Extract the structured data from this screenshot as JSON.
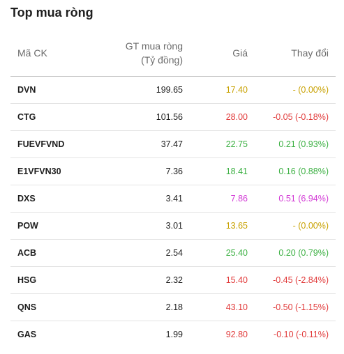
{
  "title": "Top mua ròng",
  "columns": {
    "code": "Mã CK",
    "value_line1": "GT mua ròng",
    "value_line2": "(Tỷ đồng)",
    "price": "Giá",
    "change": "Thay đổi"
  },
  "colors": {
    "reference": "#c8a100",
    "decrease": "#e13a3a",
    "increase": "#3cb043",
    "ceiling": "#d33cd6"
  },
  "rows": [
    {
      "code": "DVN",
      "value": "199.65",
      "price": "17.40",
      "change": "- (0.00%)",
      "status": "ref"
    },
    {
      "code": "CTG",
      "value": "101.56",
      "price": "28.00",
      "change": "-0.05 (-0.18%)",
      "status": "down"
    },
    {
      "code": "FUEVFVND",
      "value": "37.47",
      "price": "22.75",
      "change": "0.21 (0.93%)",
      "status": "up"
    },
    {
      "code": "E1VFVN30",
      "value": "7.36",
      "price": "18.41",
      "change": "0.16 (0.88%)",
      "status": "up"
    },
    {
      "code": "DXS",
      "value": "3.41",
      "price": "7.86",
      "change": "0.51 (6.94%)",
      "status": "ceil"
    },
    {
      "code": "POW",
      "value": "3.01",
      "price": "13.65",
      "change": "- (0.00%)",
      "status": "ref"
    },
    {
      "code": "ACB",
      "value": "2.54",
      "price": "25.40",
      "change": "0.20 (0.79%)",
      "status": "up"
    },
    {
      "code": "HSG",
      "value": "2.32",
      "price": "15.40",
      "change": "-0.45 (-2.84%)",
      "status": "down"
    },
    {
      "code": "QNS",
      "value": "2.18",
      "price": "43.10",
      "change": "-0.50 (-1.15%)",
      "status": "down"
    },
    {
      "code": "GAS",
      "value": "1.99",
      "price": "92.80",
      "change": "-0.10 (-0.11%)",
      "status": "down"
    }
  ]
}
